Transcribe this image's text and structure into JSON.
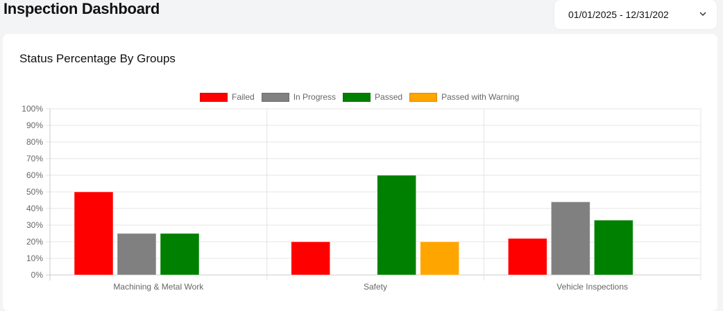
{
  "header": {
    "title": "Inspection Dashboard"
  },
  "date_range": {
    "value": "01/01/2025 - 12/31/202",
    "icon": "chevron-down-icon"
  },
  "card": {
    "title": "Status Percentage By Groups"
  },
  "chart_data": {
    "type": "bar",
    "title": "Status Percentage By Groups",
    "xlabel": "",
    "ylabel": "",
    "ylim": [
      0,
      100
    ],
    "yticks": [
      "0%",
      "10%",
      "20%",
      "30%",
      "40%",
      "50%",
      "60%",
      "70%",
      "80%",
      "90%",
      "100%"
    ],
    "grid": true,
    "legend_position": "top",
    "categories": [
      "Machining & Metal Work",
      "Safety",
      "Vehicle Inspections"
    ],
    "series": [
      {
        "name": "Failed",
        "color": "#ff0000",
        "values": [
          50,
          20,
          22
        ]
      },
      {
        "name": "In Progress",
        "color": "#808080",
        "values": [
          25,
          0,
          44
        ]
      },
      {
        "name": "Passed",
        "color": "#008000",
        "values": [
          25,
          60,
          33
        ]
      },
      {
        "name": "Passed with Warning",
        "color": "#ffa500",
        "values": [
          0,
          20,
          0
        ]
      }
    ]
  }
}
